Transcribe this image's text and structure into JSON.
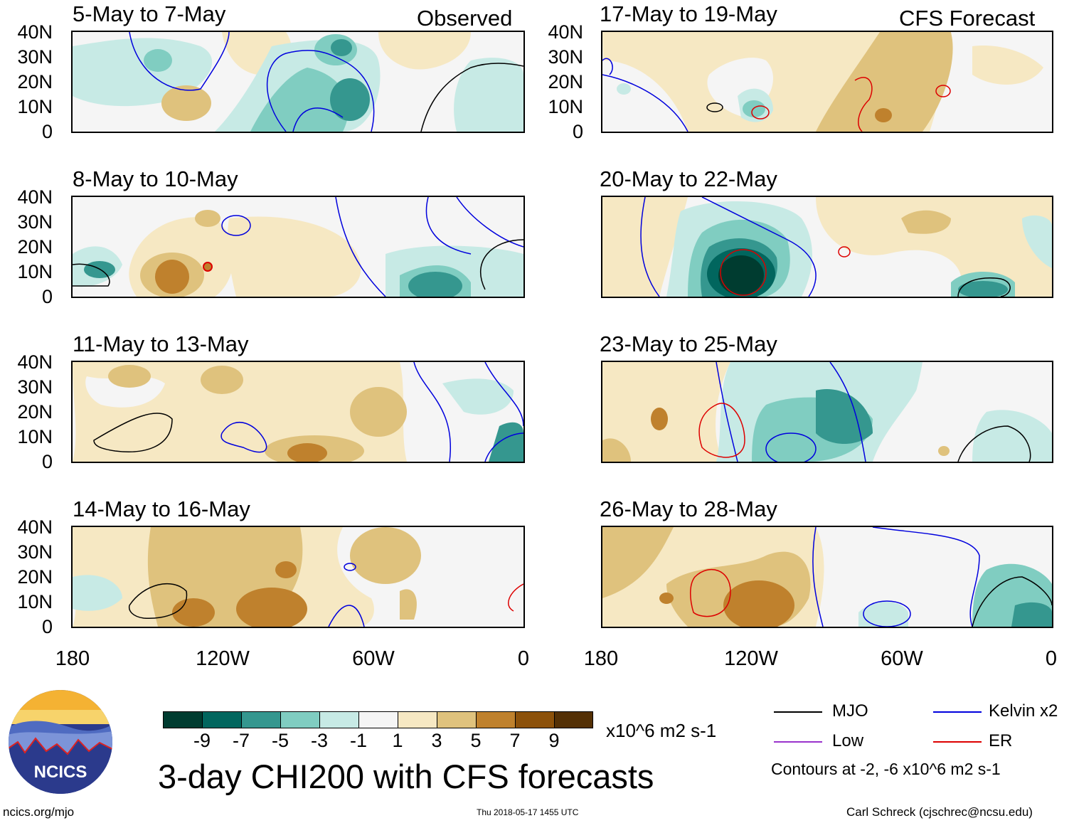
{
  "header": {
    "observed_label": "Observed",
    "forecast_label": "CFS Forecast"
  },
  "panels_left": [
    {
      "title": "5-May to 7-May"
    },
    {
      "title": "8-May to 10-May"
    },
    {
      "title": "11-May to 13-May"
    },
    {
      "title": "14-May to 16-May"
    }
  ],
  "panels_right": [
    {
      "title": "17-May to 19-May"
    },
    {
      "title": "20-May to 22-May"
    },
    {
      "title": "23-May to 25-May"
    },
    {
      "title": "26-May to 28-May"
    }
  ],
  "axes": {
    "lat_labels": [
      "40N",
      "30N",
      "20N",
      "10N",
      "0"
    ],
    "lon_labels": [
      "180",
      "120W",
      "60W",
      "0"
    ]
  },
  "colorbar": {
    "ticks": [
      "-9",
      "-7",
      "-5",
      "-3",
      "-1",
      "1",
      "3",
      "5",
      "7",
      "9"
    ],
    "units": "x10^6 m2 s-1",
    "colors": [
      "#003c30",
      "#01665e",
      "#35978f",
      "#80cdc1",
      "#c7eae5",
      "#f5f5f5",
      "#f6e8c3",
      "#dfc27d",
      "#bf812d",
      "#8c510a",
      "#543005"
    ]
  },
  "legend": {
    "items": [
      {
        "label": "MJO",
        "color": "#000000"
      },
      {
        "label": "Kelvin x2",
        "color": "#0000dd"
      },
      {
        "label": "Low",
        "color": "#9933cc"
      },
      {
        "label": "ER",
        "color": "#dd0000"
      }
    ],
    "contour_note": "Contours at -2, -6 x10^6 m2 s-1"
  },
  "footer": {
    "main_title": "3-day CHI200 with CFS forecasts",
    "logo_text": "NCICS",
    "url": "ncics.org/mjo",
    "timestamp": "Thu 2018-05-17 1455 UTC",
    "credit": "Carl Schreck (cjschrec@ncsu.edu)"
  }
}
